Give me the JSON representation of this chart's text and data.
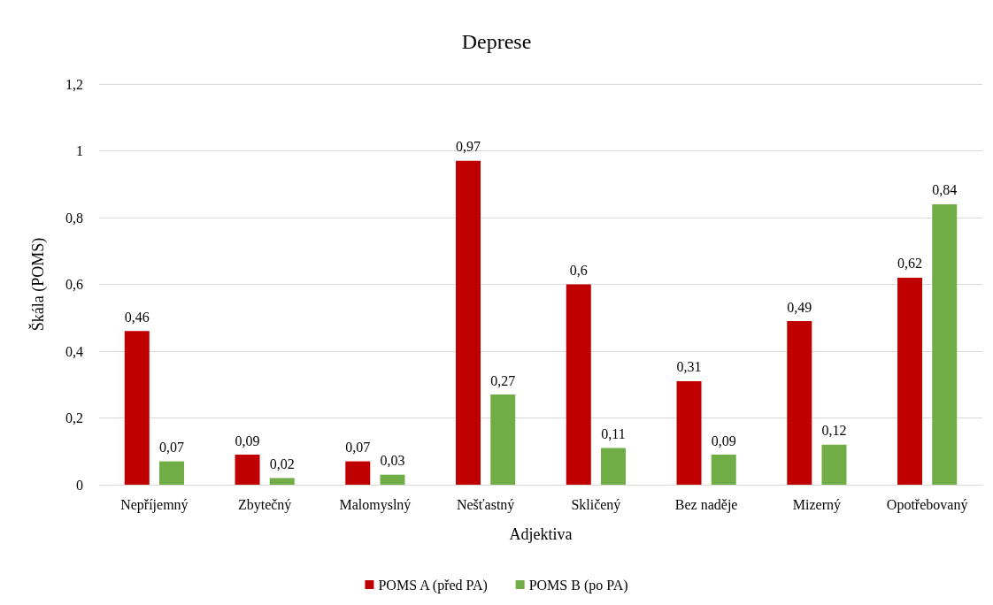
{
  "chart_data": {
    "type": "bar",
    "title": "Deprese",
    "xlabel": "Adjektiva",
    "ylabel": "Škála (POMS)",
    "categories": [
      "Nepříjemný",
      "Zbytečný",
      "Malomyslný",
      "Nešťastný",
      "Skličený",
      "Bez naděje",
      "Mizerný",
      "Opotřebovaný"
    ],
    "series": [
      {
        "name": "POMS A (před PA)",
        "color": "#c00000",
        "values": [
          0.46,
          0.09,
          0.07,
          0.97,
          0.6,
          0.31,
          0.49,
          0.62
        ],
        "value_labels": [
          "0,46",
          "0,09",
          "0,07",
          "0,97",
          "0,6",
          "0,31",
          "0,49",
          "0,62"
        ]
      },
      {
        "name": "POMS B (po PA)",
        "color": "#70ad47",
        "values": [
          0.07,
          0.02,
          0.03,
          0.27,
          0.11,
          0.09,
          0.12,
          0.84
        ],
        "value_labels": [
          "0,07",
          "0,02",
          "0,03",
          "0,27",
          "0,11",
          "0,09",
          "0,12",
          "0,84"
        ]
      }
    ],
    "ylim": [
      0,
      1.2
    ],
    "yticks": [
      0,
      {
        "value": 0.2,
        "label": "0,2"
      },
      {
        "value": 0.4,
        "label": "0,4"
      },
      {
        "value": 0.6,
        "label": "0,6"
      },
      {
        "value": 0.8,
        "label": "0,8"
      },
      1,
      {
        "value": 1.2,
        "label": "1,2"
      }
    ],
    "grid": "y",
    "legend": "bottom"
  }
}
